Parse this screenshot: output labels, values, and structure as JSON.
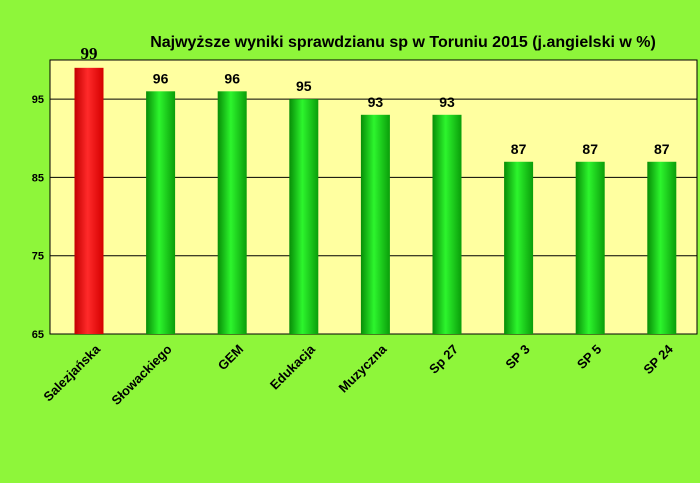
{
  "chart_data": {
    "type": "bar",
    "title": "Najwyższe wyniki sprawdzianu sp w Toruniu 2015 (j.angielski w %)",
    "categories": [
      "Salezjańska",
      "Słowackiego",
      "GEM",
      "Edukacja",
      "Muzyczna",
      "Sp 27",
      "SP 3",
      "SP 5",
      "SP 24"
    ],
    "values": [
      99,
      96,
      96,
      95,
      93,
      93,
      87,
      87,
      87
    ],
    "ylim": [
      65,
      100
    ],
    "yticks": [
      65,
      75,
      85,
      95
    ],
    "grid": true,
    "colors": {
      "background": "#8ef63a",
      "plot_area": "#ffffa0",
      "highlight_bar": "#ff1a1a",
      "bar": "#11d611",
      "grid": "#000000"
    },
    "highlight_index": 0
  }
}
